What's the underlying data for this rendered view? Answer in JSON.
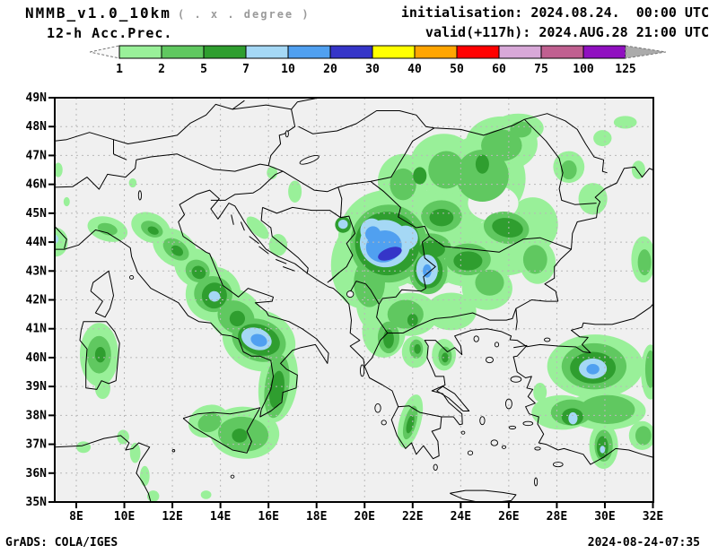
{
  "header": {
    "title": "NMMB_v1.0_10km",
    "subtitle": "( . x . degree )",
    "field_label": "12-h Acc.Prec.",
    "init_line": "initialisation: 2024.08.24.  00:00 UTC",
    "valid_line": "valid(+117h): 2024.AUG.28 21:00 UTC"
  },
  "colorbar": {
    "levels": [
      "1",
      "2",
      "5",
      "7",
      "10",
      "20",
      "30",
      "40",
      "50",
      "60",
      "75",
      "100",
      "125"
    ],
    "colors": [
      "#99f099",
      "#60c860",
      "#2f9e2f",
      "#a5d8f5",
      "#50a0f0",
      "#3535c8",
      "#ffff00",
      "#ffa500",
      "#ff0000",
      "#d8a8d8",
      "#c06090",
      "#9010c0"
    ],
    "under_color": "#fafafa",
    "over_color": "#ababab",
    "outline_color": "#000000"
  },
  "map": {
    "lat_ticks": [
      "49N",
      "48N",
      "47N",
      "46N",
      "45N",
      "44N",
      "43N",
      "42N",
      "41N",
      "40N",
      "39N",
      "38N",
      "37N",
      "36N",
      "35N"
    ],
    "lon_ticks": [
      "8E",
      "10E",
      "12E",
      "14E",
      "16E",
      "18E",
      "20E",
      "22E",
      "24E",
      "26E",
      "28E",
      "30E",
      "32E"
    ],
    "lon_min": 8,
    "lon_max": 32,
    "lat_min": 35,
    "lat_max": 49,
    "background": "#f0f0f0",
    "grid_color": "#b8b8b8",
    "line_color": "#000000",
    "frame_color": "#000000"
  },
  "footer": {
    "left": "GrADS: COLA/IGES",
    "right": "2024-08-24-07:35"
  }
}
